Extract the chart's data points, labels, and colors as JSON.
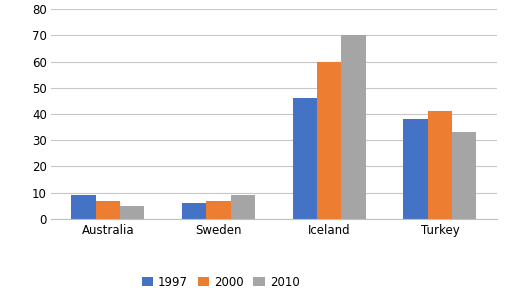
{
  "categories": [
    "Australia",
    "Sweden",
    "Iceland",
    "Turkey"
  ],
  "series": {
    "1997": [
      9,
      6,
      46,
      38
    ],
    "2000": [
      7,
      7,
      60,
      41
    ],
    "2010": [
      5,
      9,
      70,
      33
    ]
  },
  "colors": {
    "1997": "#4472C4",
    "2000": "#ED7D31",
    "2010": "#A5A5A5"
  },
  "ylim": [
    0,
    80
  ],
  "yticks": [
    0,
    10,
    20,
    30,
    40,
    50,
    60,
    70,
    80
  ],
  "bar_width": 0.22,
  "legend_labels": [
    "1997",
    "2000",
    "2010"
  ],
  "background_color": "#ffffff",
  "grid_color": "#c8c8c8",
  "spine_color": "#c0c0c0"
}
